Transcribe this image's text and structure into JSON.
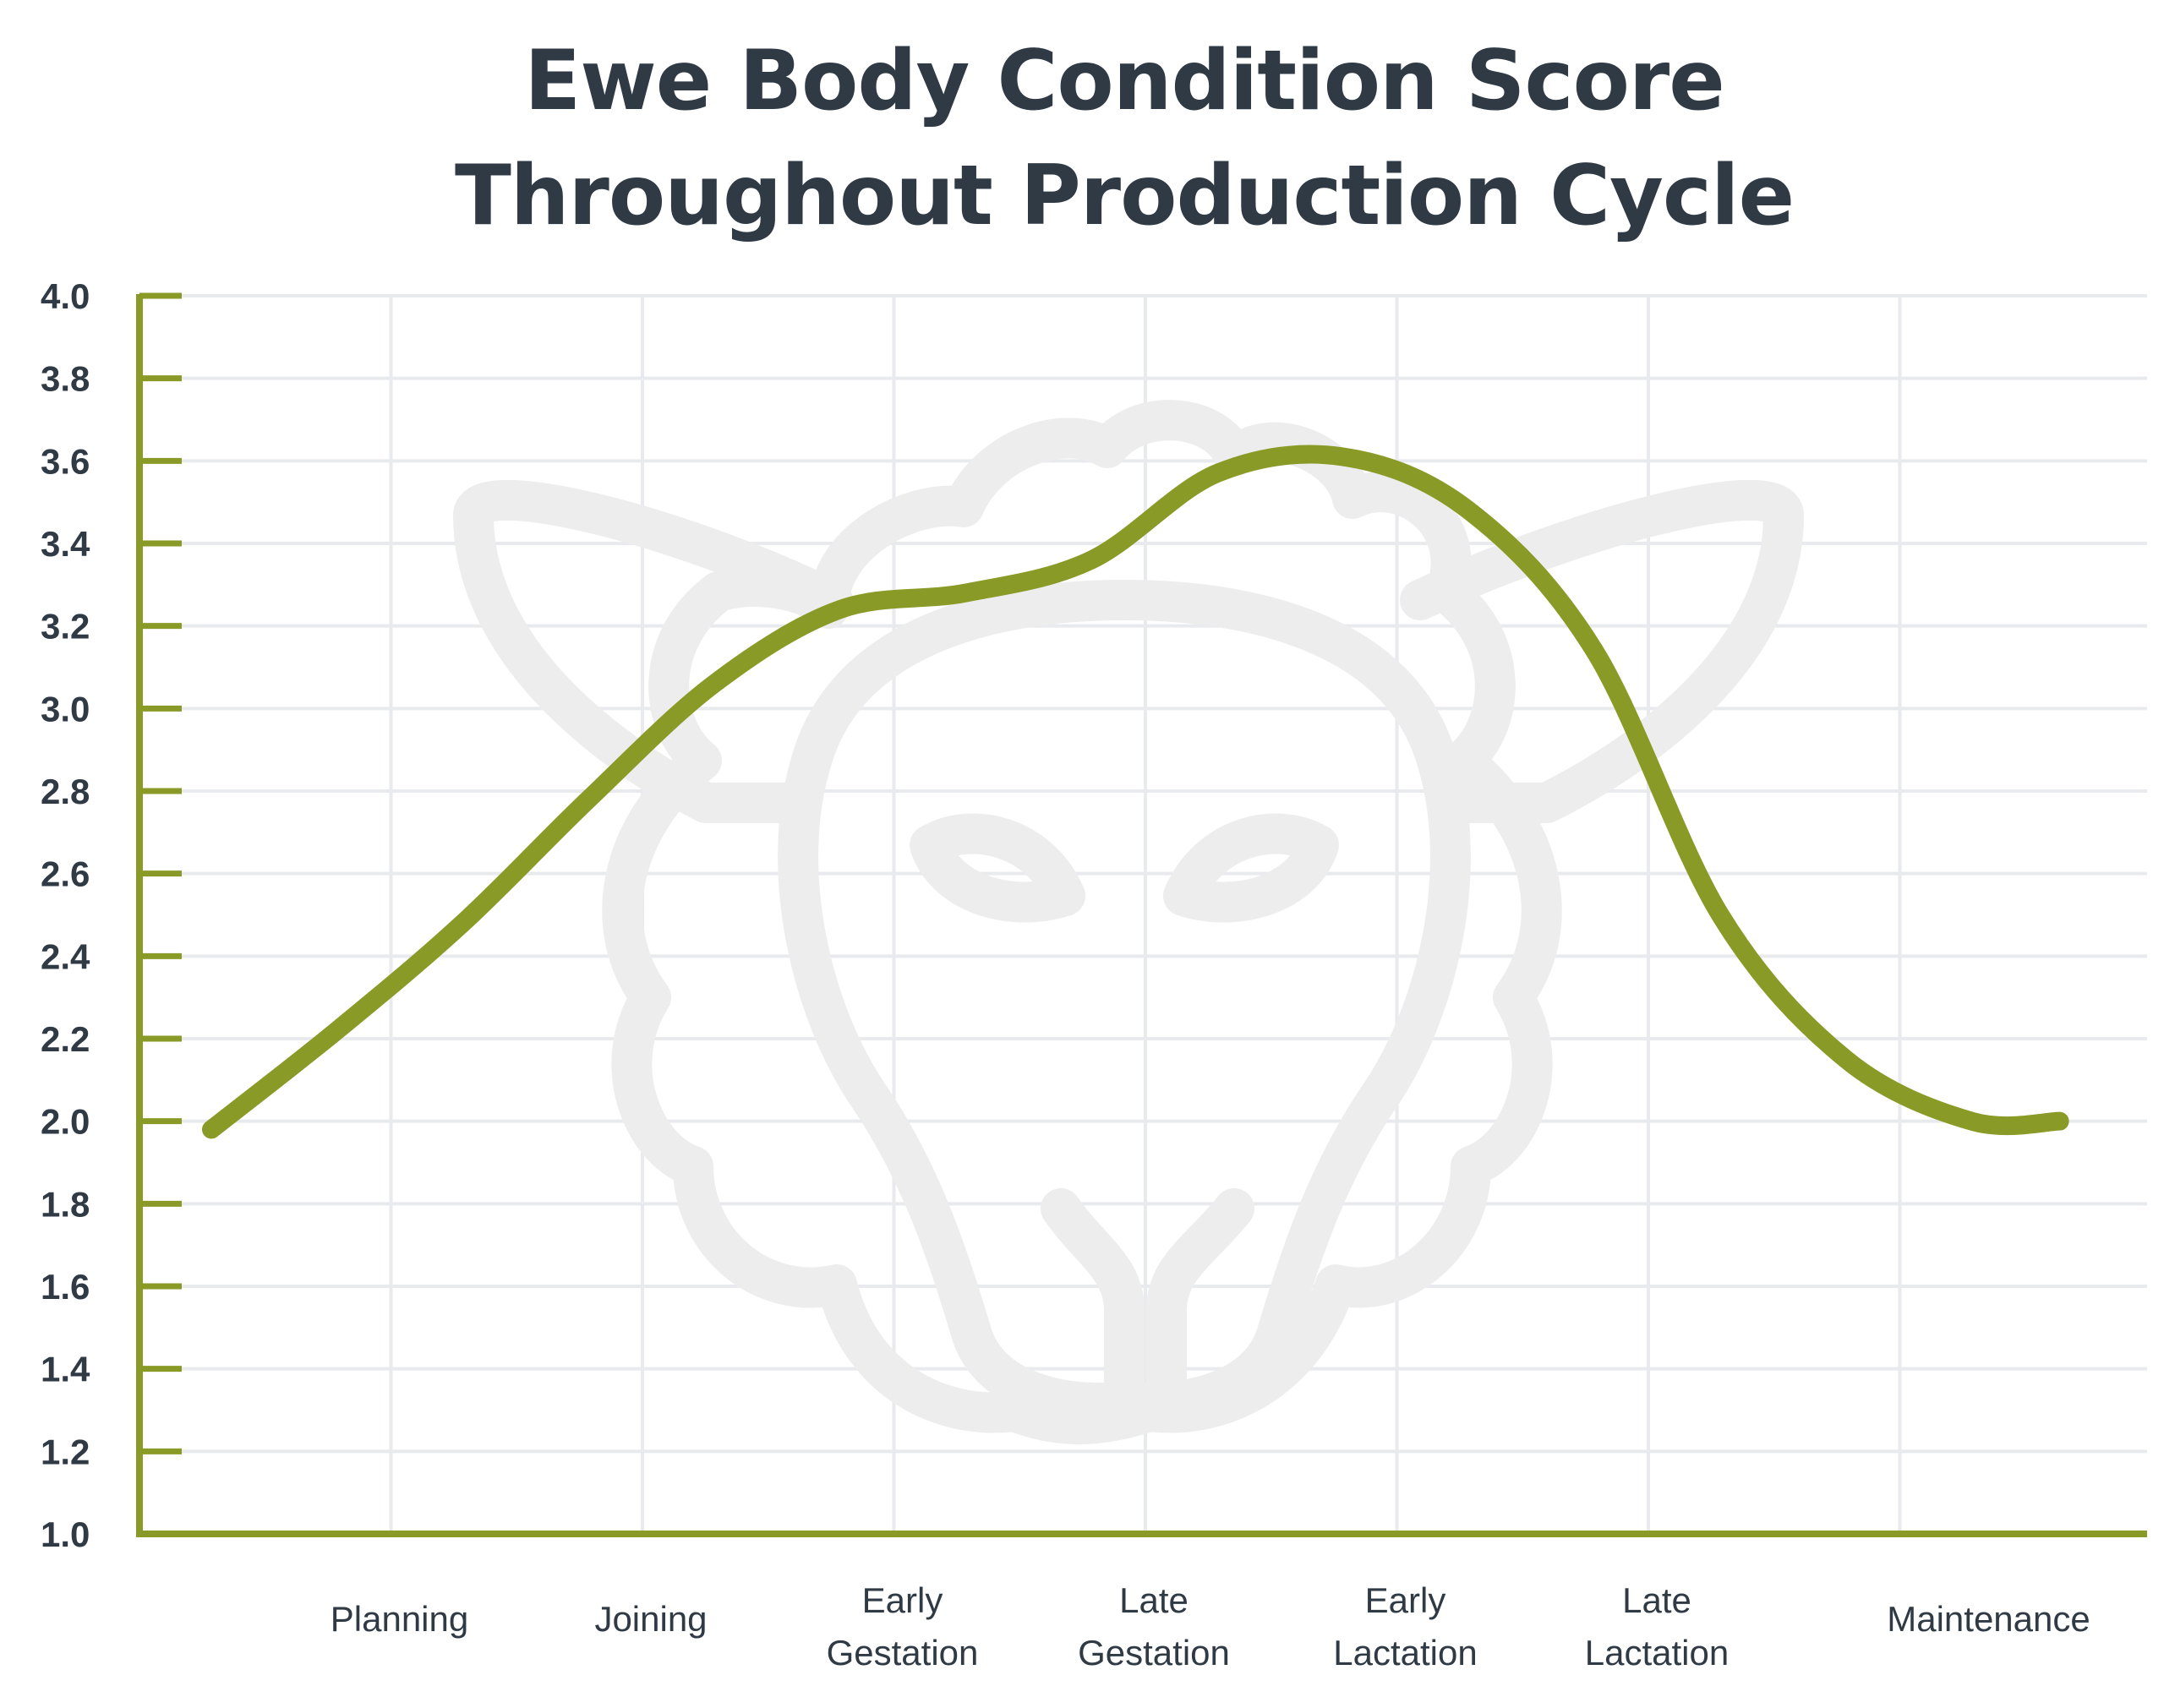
{
  "colors": {
    "accent": "#8a9a26",
    "text": "#2f3a45",
    "grid": "#e9eaee",
    "watermark": "#ededed"
  },
  "chart_data": {
    "type": "line",
    "title_lines": [
      "Ewe Body Condition Score",
      "Throughout Production Cycle"
    ],
    "xlabel": "",
    "ylabel": "",
    "ylim": [
      1.0,
      4.0
    ],
    "yticks": [
      "1.0",
      "1.2",
      "1.4",
      "1.6",
      "1.8",
      "2.0",
      "2.2",
      "2.4",
      "2.6",
      "2.8",
      "3.0",
      "3.2",
      "3.4",
      "3.6",
      "3.8",
      "4.0"
    ],
    "categories": [
      [
        "Planning"
      ],
      [
        "Joining"
      ],
      [
        "Early",
        "Gestation"
      ],
      [
        "Late",
        "Gestation"
      ],
      [
        "Early",
        "Lactation"
      ],
      [
        "Late",
        "Lactation"
      ],
      [
        "Maintenance"
      ]
    ],
    "grid": true,
    "watermark_icon": "sheep-head-icon",
    "series": [
      {
        "x": [
          0.0,
          0.5,
          1.0,
          1.5,
          2.0,
          2.5,
          3.0,
          3.5,
          4.0,
          4.5,
          5.0,
          5.5,
          6.0,
          6.5,
          7.0,
          7.35
        ],
        "y": [
          1.98,
          2.22,
          2.48,
          2.78,
          3.06,
          3.24,
          3.28,
          3.36,
          3.57,
          3.61,
          3.48,
          3.14,
          2.5,
          2.15,
          2.0,
          2.0
        ]
      }
    ]
  }
}
